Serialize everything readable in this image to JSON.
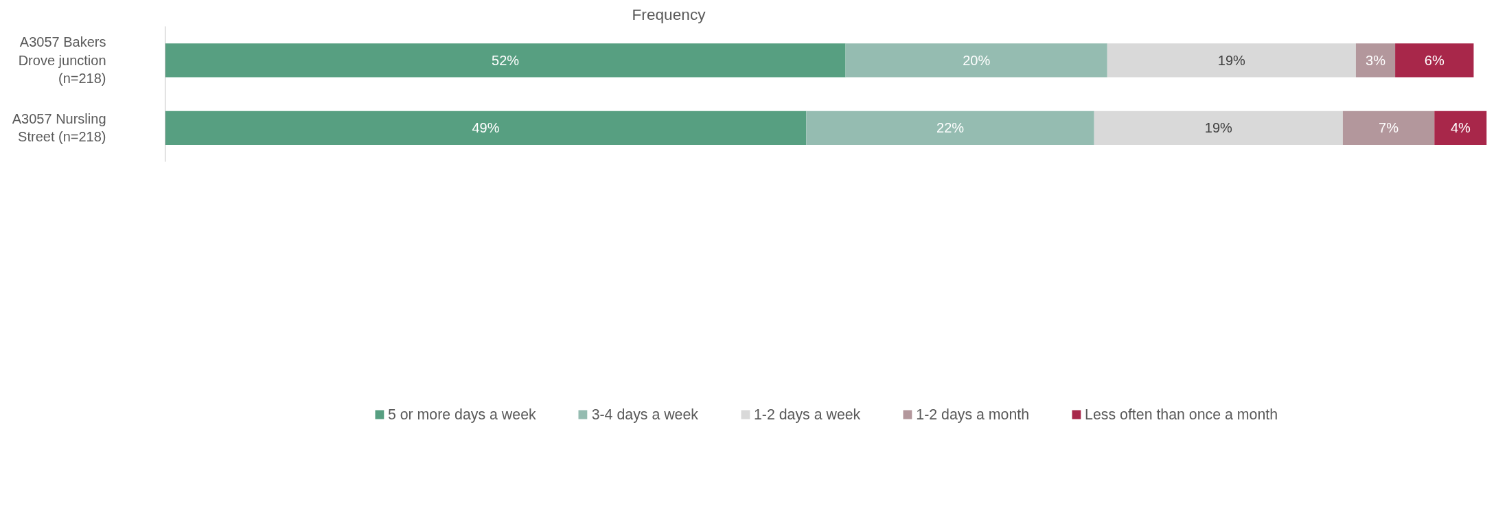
{
  "chart_data": {
    "type": "bar",
    "title": "Frequency",
    "orientation": "horizontal",
    "stacked": true,
    "data_labels": true,
    "legend": "bottom",
    "grid": false,
    "categories": [
      "A3057 Bakers\nDrove junction\n(n=218)",
      "A3057 Nursling\nStreet (n=218)"
    ],
    "series": [
      {
        "name": "5 or more days a week",
        "color": "#579f81",
        "values": [
          52,
          49
        ],
        "value_labels": [
          "52%",
          "49%"
        ]
      },
      {
        "name": "3-4 days a week",
        "color": "#95bcb1",
        "values": [
          20,
          22
        ],
        "value_labels": [
          "20%",
          "22%"
        ]
      },
      {
        "name": "1-2 days a week",
        "color": "#d9d9d9",
        "values": [
          19,
          19
        ],
        "value_labels": [
          "19%",
          "19%"
        ]
      },
      {
        "name": "1-2 days a month",
        "color": "#b3979c",
        "values": [
          3,
          7
        ],
        "value_labels": [
          "3%",
          "7%"
        ]
      },
      {
        "name": "Less often than once a month",
        "color": "#a8274a",
        "values": [
          6,
          4
        ],
        "value_labels": [
          "6%",
          "4%"
        ]
      }
    ]
  }
}
